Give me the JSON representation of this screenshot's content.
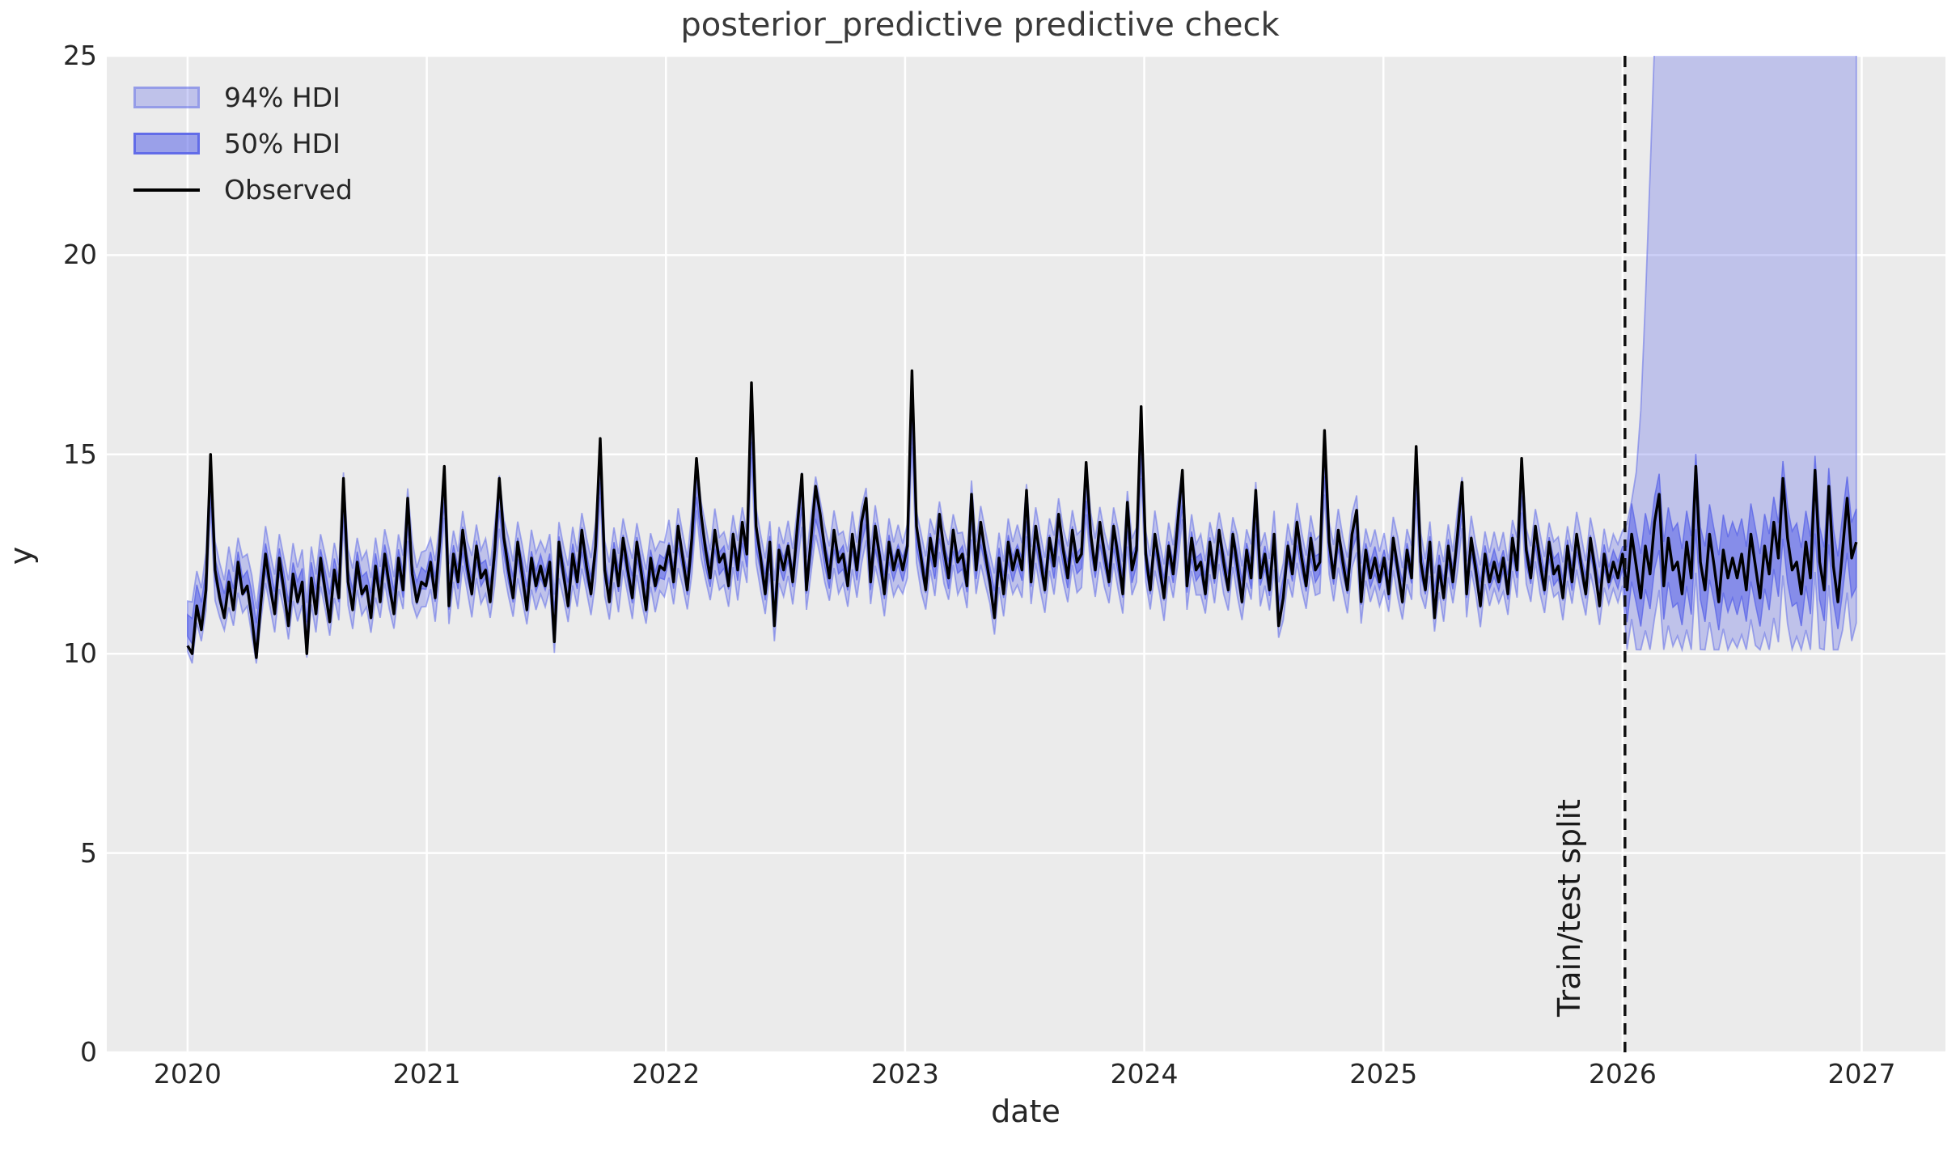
{
  "chart_data": {
    "type": "line",
    "title": "posterior_predictive predictive check",
    "xlabel": "date",
    "ylabel": "y",
    "x_ticks": [
      2020,
      2021,
      2022,
      2023,
      2024,
      2025,
      2026,
      2027
    ],
    "y_ticks": [
      0,
      5,
      10,
      15,
      20,
      25
    ],
    "xlim": [
      2019.662,
      2027.35
    ],
    "ylim": [
      0,
      25
    ],
    "grid": true,
    "legend_position": "upper left",
    "legend": [
      {
        "label": "94% HDI",
        "type": "band",
        "alpha": 0.3
      },
      {
        "label": "50% HDI",
        "type": "band",
        "alpha": 0.55
      },
      {
        "label": "Observed",
        "type": "line"
      }
    ],
    "split_line": {
      "x": 2026.01,
      "label": "Train/test split",
      "style": "dashed"
    },
    "colors": {
      "band_base": "#5863e7",
      "observed": "#000000",
      "plot_background": "#ebebeb",
      "grid": "#ffffff",
      "text": "#262626",
      "split_line": "#111111"
    },
    "series_start_year": 2020,
    "series_step_years": 0.0191683,
    "observed": [
      10.2,
      10.0,
      11.2,
      10.6,
      11.6,
      15.0,
      12.1,
      11.4,
      10.9,
      11.8,
      11.1,
      12.3,
      11.5,
      11.7,
      10.9,
      9.9,
      11.3,
      12.5,
      11.7,
      11.0,
      12.4,
      11.6,
      10.7,
      12.0,
      11.3,
      11.8,
      10.0,
      11.9,
      11.0,
      12.4,
      11.6,
      10.8,
      12.1,
      11.4,
      14.4,
      11.8,
      11.1,
      12.3,
      11.5,
      11.7,
      10.9,
      12.2,
      11.3,
      12.5,
      11.7,
      11.0,
      12.4,
      11.6,
      13.9,
      12.0,
      11.3,
      11.8,
      11.7,
      12.3,
      11.4,
      12.8,
      14.7,
      11.2,
      12.5,
      11.8,
      13.1,
      12.2,
      11.5,
      12.7,
      11.9,
      12.1,
      11.3,
      12.6,
      14.4,
      12.9,
      12.1,
      11.4,
      12.8,
      12.0,
      11.1,
      12.4,
      11.7,
      12.2,
      11.7,
      12.3,
      10.3,
      12.8,
      12.0,
      11.2,
      12.5,
      11.8,
      13.1,
      12.2,
      11.5,
      12.7,
      15.4,
      12.1,
      11.3,
      12.6,
      11.7,
      12.9,
      12.1,
      11.4,
      12.8,
      12.0,
      11.1,
      12.4,
      11.7,
      12.2,
      12.1,
      12.7,
      11.8,
      13.2,
      12.4,
      11.6,
      12.9,
      14.9,
      13.5,
      12.6,
      11.9,
      13.1,
      12.3,
      12.5,
      11.7,
      13.0,
      12.1,
      13.3,
      12.5,
      16.8,
      13.2,
      12.4,
      11.5,
      12.8,
      10.7,
      12.6,
      12.1,
      12.7,
      11.8,
      13.2,
      14.5,
      11.6,
      12.9,
      14.2,
      13.5,
      12.6,
      11.9,
      13.1,
      12.3,
      12.5,
      11.7,
      13.0,
      12.1,
      13.3,
      13.9,
      11.8,
      13.2,
      12.4,
      11.5,
      12.8,
      12.1,
      12.6,
      12.1,
      12.7,
      17.1,
      13.2,
      12.4,
      11.6,
      12.9,
      12.2,
      13.5,
      12.6,
      11.9,
      13.1,
      12.3,
      12.5,
      11.7,
      14.0,
      12.1,
      13.3,
      12.5,
      11.8,
      10.9,
      12.4,
      11.5,
      12.8,
      12.1,
      12.6,
      12.1,
      14.1,
      11.8,
      13.2,
      12.4,
      11.6,
      12.9,
      12.2,
      13.5,
      12.6,
      11.9,
      13.1,
      12.3,
      12.5,
      14.8,
      13.0,
      12.1,
      13.3,
      12.5,
      11.8,
      13.2,
      12.4,
      11.5,
      13.8,
      12.1,
      12.6,
      16.2,
      12.5,
      11.6,
      13.0,
      12.2,
      11.4,
      12.7,
      12.0,
      13.3,
      14.6,
      11.7,
      12.9,
      12.1,
      12.3,
      11.5,
      12.8,
      11.9,
      13.1,
      12.3,
      11.6,
      13.0,
      12.2,
      11.3,
      12.6,
      11.9,
      14.1,
      11.9,
      12.5,
      11.6,
      13.0,
      10.7,
      11.4,
      12.7,
      12.0,
      13.3,
      12.4,
      11.7,
      12.9,
      12.1,
      12.3,
      15.6,
      12.8,
      11.9,
      13.1,
      12.3,
      11.6,
      13.0,
      13.6,
      11.3,
      12.6,
      11.9,
      12.4,
      11.8,
      12.4,
      11.5,
      12.9,
      12.1,
      11.3,
      12.6,
      11.9,
      15.2,
      12.3,
      11.6,
      12.8,
      10.9,
      12.2,
      11.4,
      12.7,
      11.8,
      13.0,
      14.3,
      11.5,
      12.9,
      12.1,
      11.2,
      12.5,
      11.8,
      12.3,
      11.8,
      12.4,
      11.5,
      12.9,
      12.1,
      14.9,
      12.6,
      11.9,
      13.2,
      12.3,
      11.6,
      12.8,
      12.0,
      12.2,
      11.4,
      12.7,
      11.8,
      13.0,
      12.2,
      11.5,
      12.9,
      12.1,
      11.2,
      12.5,
      11.8,
      12.3,
      11.9,
      12.5,
      11.6,
      13.0,
      12.2,
      11.4,
      12.7,
      12.0,
      13.3,
      14.0,
      11.7,
      12.9,
      12.1,
      12.3,
      11.5,
      12.8,
      11.9,
      14.7,
      12.3,
      11.6,
      13.0,
      12.2,
      11.3,
      12.6,
      11.9,
      12.4,
      11.9,
      12.5,
      11.6,
      13.0,
      12.2,
      11.4,
      12.7,
      12.0,
      13.3,
      12.4,
      14.4,
      12.9,
      12.1,
      12.3,
      11.5,
      12.8,
      11.9,
      14.6,
      12.3,
      11.6,
      14.2,
      12.2,
      11.3,
      12.6,
      13.9,
      12.4,
      12.8
    ],
    "hdi_bands": {
      "relative_to_observed": true,
      "center_shrink": 0.75,
      "center_pull": 12.2,
      "hdi94_halfwidth": 0.62,
      "hdi50_halfwidth": 0.28,
      "post_split": {
        "hdi50_halfwidth": 0.95,
        "hdi94_lower_offset": 2.0,
        "hdi94_lower_floor": 10.1,
        "hdi94_upper_keyframes": [
          [
            2026.01,
            13.0
          ],
          [
            2026.05,
            14.2
          ],
          [
            2026.07,
            15.2
          ],
          [
            2026.1,
            19.5
          ],
          [
            2026.135,
            25.5
          ],
          [
            2026.3,
            50.0
          ],
          [
            2026.977,
            58.0
          ]
        ]
      }
    }
  }
}
